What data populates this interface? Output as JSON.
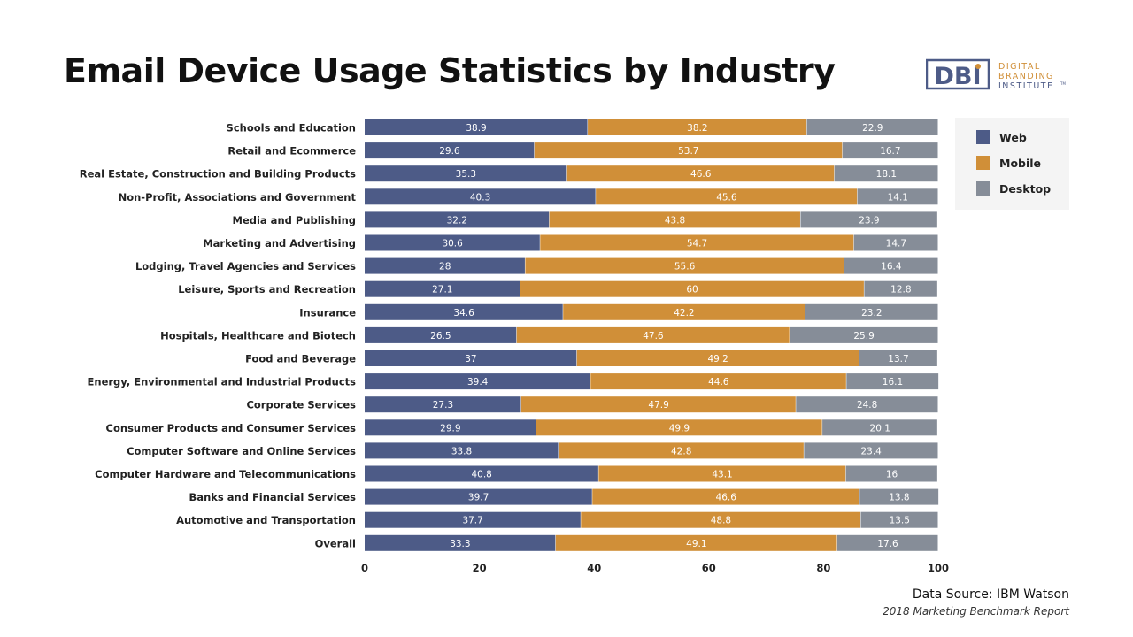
{
  "header": {
    "title": "Email Device Usage Statistics by Industry"
  },
  "logo": {
    "mark": "DBI",
    "line1": "DIGITAL",
    "line2": "BRANDING",
    "line3": "INSTITUTE",
    "tm": "TM"
  },
  "footer": {
    "source": "Data Source: IBM Watson",
    "report": "2018 Marketing Benchmark Report"
  },
  "colors": {
    "web": "#4d5b87",
    "mobile": "#d08f38",
    "desktop": "#868d98",
    "logo_blue": "#4d5b87",
    "logo_orange": "#d08f38"
  },
  "chart_data": {
    "type": "bar",
    "orientation": "horizontal",
    "stacked": true,
    "categories": [
      "Schools and Education",
      "Retail and Ecommerce",
      "Real Estate, Construction and Building Products",
      "Non-Profit, Associations and Government",
      "Media and Publishing",
      "Marketing and Advertising",
      "Lodging, Travel Agencies and Services",
      "Leisure, Sports and Recreation",
      "Insurance",
      "Hospitals, Healthcare and Biotech",
      "Food and Beverage",
      "Energy, Environmental and Industrial Products",
      "Corporate Services",
      "Consumer Products and Consumer Services",
      "Computer Software and Online Services",
      "Computer Hardware and Telecommunications",
      "Banks and Financial Services",
      "Automotive and Transportation",
      "Overall"
    ],
    "series": [
      {
        "name": "Web",
        "color": "#4d5b87",
        "values": [
          38.9,
          29.6,
          35.3,
          40.3,
          32.2,
          30.6,
          28,
          27.1,
          34.6,
          26.5,
          37,
          39.4,
          27.3,
          29.9,
          33.8,
          40.8,
          39.7,
          37.7,
          33.3
        ]
      },
      {
        "name": "Mobile",
        "color": "#d08f38",
        "values": [
          38.2,
          53.7,
          46.6,
          45.6,
          43.8,
          54.7,
          55.6,
          60,
          42.2,
          47.6,
          49.2,
          44.6,
          47.9,
          49.9,
          42.8,
          43.1,
          46.6,
          48.8,
          49.1
        ]
      },
      {
        "name": "Desktop",
        "color": "#868d98",
        "values": [
          22.9,
          16.7,
          18.1,
          14.1,
          23.9,
          14.7,
          16.4,
          12.8,
          23.2,
          25.9,
          13.7,
          16.1,
          24.8,
          20.1,
          23.4,
          16,
          13.8,
          13.5,
          17.6
        ]
      }
    ],
    "xlim": [
      0,
      100
    ],
    "xticks": [
      0,
      20,
      40,
      60,
      80,
      100
    ],
    "grid": false,
    "legend": "right"
  }
}
